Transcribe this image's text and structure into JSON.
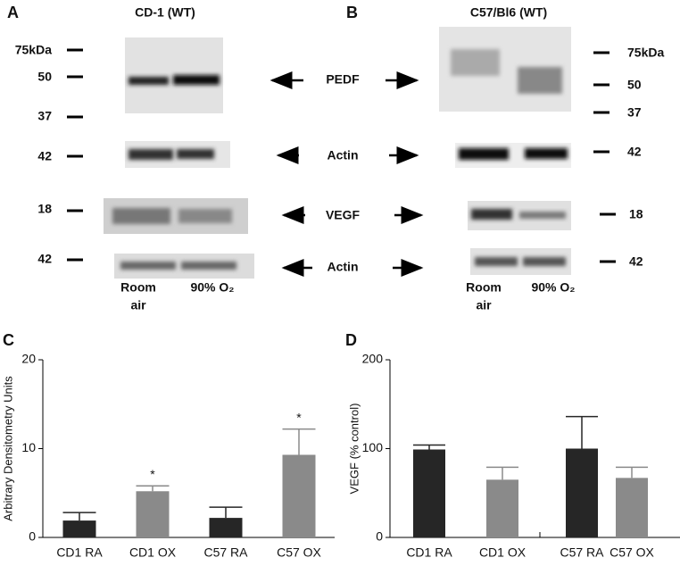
{
  "panels": [
    "A",
    "B",
    "C",
    "D"
  ],
  "blots": {
    "left_title": "CD-1 (WT)",
    "right_title": "C57/Bl6 (WT)",
    "left_markers": [
      "75kDa",
      "50",
      "37",
      "42",
      "18",
      "42"
    ],
    "right_markers": [
      "75kDa",
      "50",
      "37",
      "42",
      "18",
      "42"
    ],
    "proteins": [
      "PEDF",
      "Actin",
      "VEGF",
      "Actin"
    ],
    "left_lanes": [
      [
        "Room",
        "air"
      ],
      [
        "90% O₂"
      ]
    ],
    "right_lanes": [
      [
        "Room",
        "air"
      ],
      [
        "90% O₂"
      ]
    ]
  },
  "chart_data": [
    {
      "type": "bar",
      "ylabel": "Arbitrary Densitometry Units",
      "categories": [
        "CD1 RA",
        "CD1 OX",
        "C57 RA",
        "C57 OX"
      ],
      "values": [
        1.9,
        5.2,
        2.2,
        9.3
      ],
      "errors": [
        0.9,
        0.6,
        1.2,
        2.9
      ],
      "colors": [
        "#262626",
        "#8a8a8a",
        "#262626",
        "#8a8a8a"
      ],
      "annotations": [
        null,
        "*",
        null,
        "*"
      ],
      "ylim": [
        0,
        20
      ],
      "yticks": [
        0,
        10,
        20
      ]
    },
    {
      "type": "bar",
      "ylabel": "VEGF (% control)",
      "categories": [
        "CD1 RA",
        "CD1 OX",
        "C57 RA",
        "C57 OX"
      ],
      "values": [
        99,
        65,
        100,
        67
      ],
      "errors": [
        5,
        14,
        36,
        12
      ],
      "colors": [
        "#262626",
        "#8a8a8a",
        "#262626",
        "#8a8a8a"
      ],
      "ylim": [
        0,
        200
      ],
      "yticks": [
        0,
        100,
        200
      ]
    }
  ]
}
